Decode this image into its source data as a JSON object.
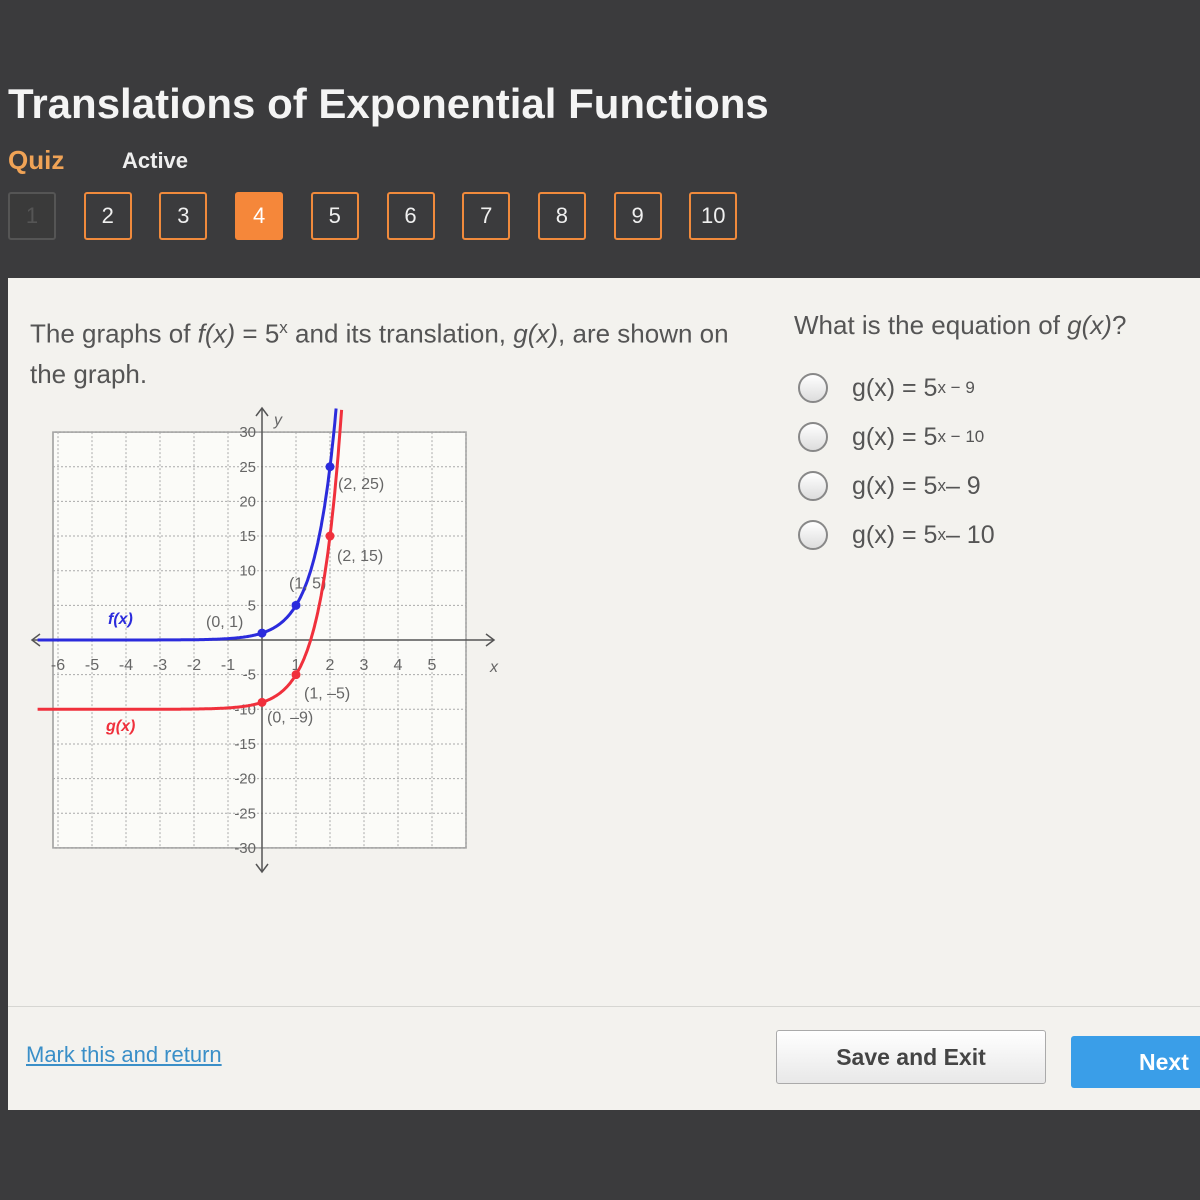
{
  "header": {
    "title": "Translations of Exponential Functions",
    "quiz_label": "Quiz",
    "status": "Active"
  },
  "nav": {
    "questions": [
      "1",
      "2",
      "3",
      "4",
      "5",
      "6",
      "7",
      "8",
      "9",
      "10"
    ],
    "current": "4",
    "completed": [
      "1"
    ]
  },
  "colors": {
    "accent": "#f5873a",
    "next_button": "#3a9ee8",
    "f_curve": "#2b2bdc",
    "g_curve": "#f0303c"
  },
  "question": {
    "prompt_parts": [
      "The graphs of ",
      "f(x)",
      " = 5",
      "x",
      " and its translation, ",
      "g(x)",
      ", are shown on the graph."
    ],
    "ask_parts": [
      "What is the equation of ",
      "g(x)",
      "?"
    ],
    "options": [
      {
        "base": "g(x) = 5",
        "exp": "x − 9",
        "tail": ""
      },
      {
        "base": "g(x) = 5",
        "exp": "x − 10",
        "tail": ""
      },
      {
        "base": "g(x) = 5",
        "exp": "x",
        "tail": " – 9"
      },
      {
        "base": "g(x) = 5",
        "exp": "x",
        "tail": " – 10"
      }
    ]
  },
  "chart_data": {
    "type": "line",
    "xlabel": "x",
    "ylabel": "y",
    "xlim": [
      -6,
      6
    ],
    "ylim": [
      -30,
      30
    ],
    "x_ticks": [
      "-6",
      "-5",
      "-4",
      "-3",
      "-2",
      "-1",
      "1",
      "2",
      "3",
      "4",
      "5"
    ],
    "y_ticks": [
      "30",
      "25",
      "20",
      "15",
      "10",
      "5",
      "-5",
      "-10",
      "-15",
      "-20",
      "-25",
      "-30"
    ],
    "grid": true,
    "series": [
      {
        "name": "f(x)",
        "function": "5^x",
        "color": "#2b2bdc",
        "points": [
          {
            "x": 0,
            "y": 1,
            "label": "(0, 1)"
          },
          {
            "x": 1,
            "y": 5,
            "label": "(1, 5)"
          },
          {
            "x": 2,
            "y": 25,
            "label": "(2, 25)"
          }
        ]
      },
      {
        "name": "g(x)",
        "function": "5^x - 10",
        "color": "#f0303c",
        "points": [
          {
            "x": 0,
            "y": -9,
            "label": "(0, –9)"
          },
          {
            "x": 1,
            "y": -5,
            "label": "(1, –5)"
          },
          {
            "x": 2,
            "y": 15,
            "label": "(2, 15)"
          }
        ]
      }
    ]
  },
  "footer": {
    "mark_link": "Mark this and return",
    "save_label": "Save and Exit",
    "next_label": "Next"
  }
}
